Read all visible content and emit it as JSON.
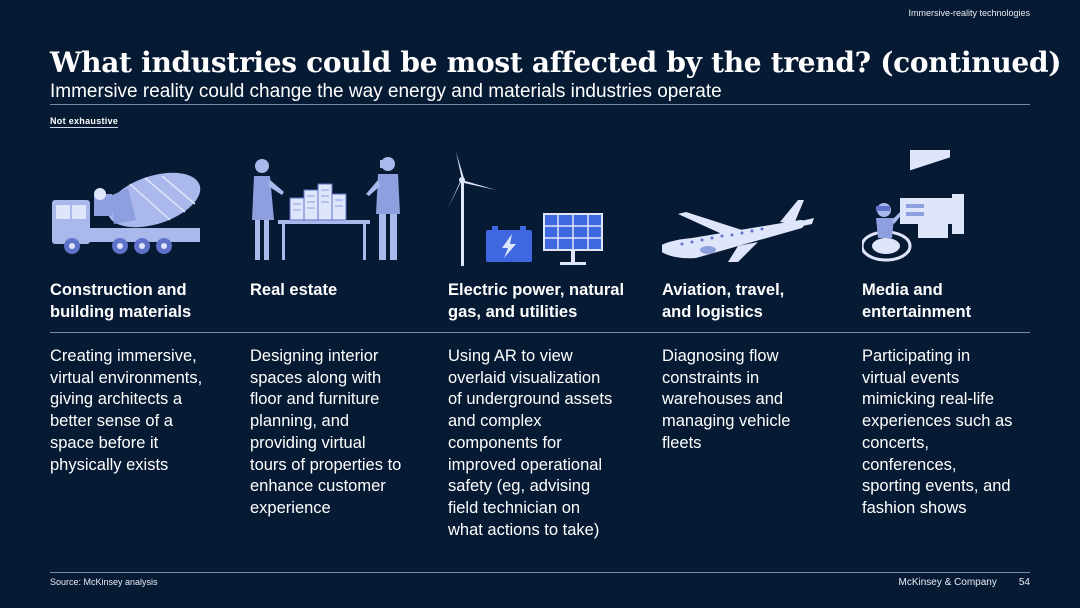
{
  "header": {
    "section_label": "Immersive-reality technologies",
    "title": "What industries could be most affected by the trend? (continued)",
    "subtitle": "Immersive reality could change the way energy and materials industries operate",
    "note": "Not exhaustive"
  },
  "industries": [
    {
      "icon": "concrete-mixer-truck-icon",
      "name": "Construction and\nbuilding materials",
      "description": "Creating immersive,\nvirtual environments,\ngiving architects a\nbetter sense of a\nspace before it\nphysically exists"
    },
    {
      "icon": "real-estate-meeting-icon",
      "name": "Real estate",
      "description": "Designing interior\nspaces along with\nfloor and furniture\nplanning, and\nproviding virtual\ntours of properties to\nenhance customer\nexperience"
    },
    {
      "icon": "energy-utilities-icon",
      "name": "Electric power, natural\ngas, and utilities",
      "description": "Using AR to view\noverlaid visualization\nof underground assets\nand complex\ncomponents for\nimproved operational\nsafety (eg, advising\nfield technician on\nwhat actions to take)"
    },
    {
      "icon": "airplane-icon",
      "name": "Aviation, travel,\nand logistics",
      "description": "Diagnosing flow\nconstraints in\nwarehouses and\nmanaging vehicle\nfleets"
    },
    {
      "icon": "vr-media-icon",
      "name": "Media and\nentertainment",
      "description": "Participating in\nvirtual events\nmimicking real-life\nexperiences such as\nconcerts,\nconferences,\nsporting events, and\nfashion shows"
    }
  ],
  "footer": {
    "source": "Source: McKinsey analysis",
    "company": "McKinsey & Company",
    "page_number": "54"
  },
  "colors": {
    "background": "#071a33",
    "illustration": "#aab8ec",
    "illustration_dark": "#5f72c9",
    "accent_blue": "#3f68e0"
  }
}
